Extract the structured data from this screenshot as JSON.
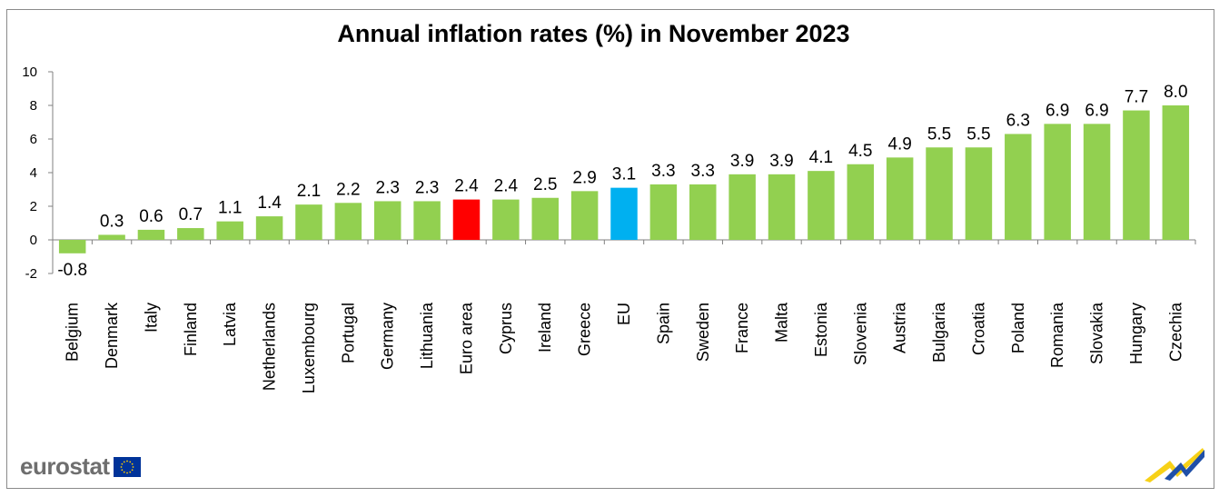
{
  "chart_data": {
    "type": "bar",
    "title": "Annual inflation rates (%)  in November 2023",
    "xlabel": "",
    "ylabel": "",
    "ylim": [
      -2,
      10
    ],
    "yticks": [
      -2,
      0,
      2,
      4,
      6,
      8,
      10
    ],
    "grid": false,
    "categories": [
      "Belgium",
      "Denmark",
      "Italy",
      "Finland",
      "Latvia",
      "Netherlands",
      "Luxembourg",
      "Portugal",
      "Germany",
      "Lithuania",
      "Euro area",
      "Cyprus",
      "Ireland",
      "Greece",
      "EU",
      "Spain",
      "Sweden",
      "France",
      "Malta",
      "Estonia",
      "Slovenia",
      "Austria",
      "Bulgaria",
      "Croatia",
      "Poland",
      "Romania",
      "Slovakia",
      "Hungary",
      "Czechia"
    ],
    "values": [
      -0.8,
      0.3,
      0.6,
      0.7,
      1.1,
      1.4,
      2.1,
      2.2,
      2.3,
      2.3,
      2.4,
      2.4,
      2.5,
      2.9,
      3.1,
      3.3,
      3.3,
      3.9,
      3.9,
      4.1,
      4.5,
      4.9,
      5.5,
      5.5,
      6.3,
      6.9,
      6.9,
      7.7,
      8.0
    ],
    "labels": [
      "-0.8",
      "0.3",
      "0.6",
      "0.7",
      "1.1",
      "1.4",
      "2.1",
      "2.2",
      "2.3",
      "2.3",
      "2.4",
      "2.4",
      "2.5",
      "2.9",
      "3.1",
      "3.3",
      "3.3",
      "3.9",
      "3.9",
      "4.1",
      "4.5",
      "4.9",
      "5.5",
      "5.5",
      "6.3",
      "6.9",
      "6.9",
      "7.7",
      "8.0"
    ],
    "colors": {
      "default": "#92d050",
      "Euro area": "#ff0000",
      "EU": "#00b0f0"
    }
  },
  "branding": {
    "logo_text": "eurostat",
    "flag_color": "#003399",
    "star_color": "#ffcc00"
  }
}
